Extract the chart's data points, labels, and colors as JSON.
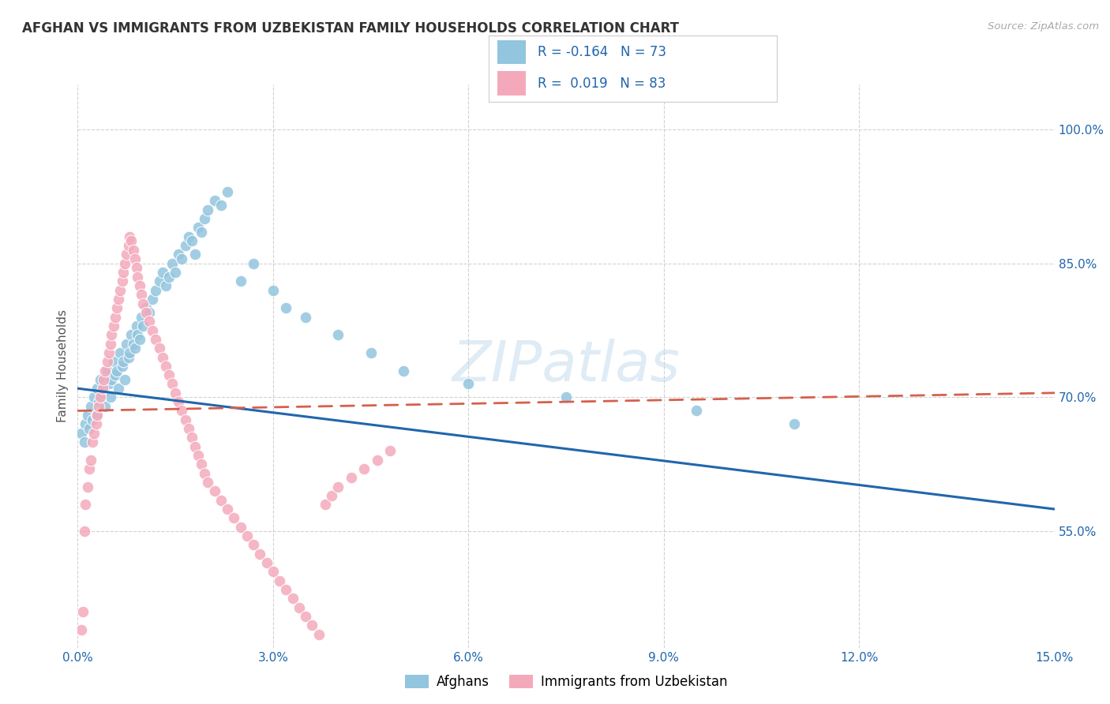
{
  "title": "AFGHAN VS IMMIGRANTS FROM UZBEKISTAN FAMILY HOUSEHOLDS CORRELATION CHART",
  "source": "Source: ZipAtlas.com",
  "ylabel": "Family Households",
  "yticks": [
    55.0,
    70.0,
    85.0,
    100.0
  ],
  "xmin": 0.0,
  "xmax": 15.0,
  "ymin": 42.0,
  "ymax": 105.0,
  "legend_blue_R": "-0.164",
  "legend_blue_N": "73",
  "legend_pink_R": "0.019",
  "legend_pink_N": "83",
  "blue_color": "#92c5de",
  "pink_color": "#f4a9bb",
  "blue_line_color": "#2166ac",
  "pink_line_color": "#d6604d",
  "watermark": "ZIPatlas",
  "afghans_x": [
    0.05,
    0.1,
    0.12,
    0.15,
    0.18,
    0.2,
    0.22,
    0.25,
    0.28,
    0.3,
    0.32,
    0.35,
    0.38,
    0.4,
    0.42,
    0.45,
    0.48,
    0.5,
    0.52,
    0.55,
    0.58,
    0.6,
    0.62,
    0.65,
    0.68,
    0.7,
    0.72,
    0.75,
    0.78,
    0.8,
    0.82,
    0.85,
    0.88,
    0.9,
    0.92,
    0.95,
    0.98,
    1.0,
    1.05,
    1.1,
    1.15,
    1.2,
    1.25,
    1.3,
    1.35,
    1.4,
    1.45,
    1.5,
    1.55,
    1.6,
    1.65,
    1.7,
    1.75,
    1.8,
    1.85,
    1.9,
    1.95,
    2.0,
    2.1,
    2.2,
    2.3,
    2.5,
    2.7,
    3.0,
    3.2,
    3.5,
    4.0,
    4.5,
    5.0,
    6.0,
    7.5,
    9.5,
    11.0
  ],
  "afghans_y": [
    66.0,
    65.0,
    67.0,
    68.0,
    66.5,
    69.0,
    67.5,
    70.0,
    68.0,
    71.0,
    69.5,
    72.0,
    70.5,
    71.0,
    69.0,
    73.0,
    71.5,
    70.0,
    72.0,
    74.0,
    72.5,
    73.0,
    71.0,
    75.0,
    73.5,
    74.0,
    72.0,
    76.0,
    74.5,
    75.0,
    77.0,
    76.0,
    75.5,
    78.0,
    77.0,
    76.5,
    79.0,
    78.0,
    80.0,
    79.5,
    81.0,
    82.0,
    83.0,
    84.0,
    82.5,
    83.5,
    85.0,
    84.0,
    86.0,
    85.5,
    87.0,
    88.0,
    87.5,
    86.0,
    89.0,
    88.5,
    90.0,
    91.0,
    92.0,
    91.5,
    93.0,
    83.0,
    85.0,
    82.0,
    80.0,
    79.0,
    77.0,
    75.0,
    73.0,
    71.5,
    70.0,
    68.5,
    67.0
  ],
  "uzbekistan_x": [
    0.05,
    0.08,
    0.1,
    0.12,
    0.15,
    0.18,
    0.2,
    0.22,
    0.25,
    0.28,
    0.3,
    0.32,
    0.35,
    0.38,
    0.4,
    0.42,
    0.45,
    0.48,
    0.5,
    0.52,
    0.55,
    0.58,
    0.6,
    0.62,
    0.65,
    0.68,
    0.7,
    0.72,
    0.75,
    0.78,
    0.8,
    0.82,
    0.85,
    0.88,
    0.9,
    0.92,
    0.95,
    0.98,
    1.0,
    1.05,
    1.1,
    1.15,
    1.2,
    1.25,
    1.3,
    1.35,
    1.4,
    1.45,
    1.5,
    1.55,
    1.6,
    1.65,
    1.7,
    1.75,
    1.8,
    1.85,
    1.9,
    1.95,
    2.0,
    2.1,
    2.2,
    2.3,
    2.4,
    2.5,
    2.6,
    2.7,
    2.8,
    2.9,
    3.0,
    3.1,
    3.2,
    3.3,
    3.4,
    3.5,
    3.6,
    3.7,
    3.8,
    3.9,
    4.0,
    4.2,
    4.4,
    4.6,
    4.8
  ],
  "uzbekistan_y": [
    44.0,
    46.0,
    55.0,
    58.0,
    60.0,
    62.0,
    63.0,
    65.0,
    66.0,
    67.0,
    68.0,
    69.0,
    70.0,
    71.0,
    72.0,
    73.0,
    74.0,
    75.0,
    76.0,
    77.0,
    78.0,
    79.0,
    80.0,
    81.0,
    82.0,
    83.0,
    84.0,
    85.0,
    86.0,
    87.0,
    88.0,
    87.5,
    86.5,
    85.5,
    84.5,
    83.5,
    82.5,
    81.5,
    80.5,
    79.5,
    78.5,
    77.5,
    76.5,
    75.5,
    74.5,
    73.5,
    72.5,
    71.5,
    70.5,
    69.5,
    68.5,
    67.5,
    66.5,
    65.5,
    64.5,
    63.5,
    62.5,
    61.5,
    60.5,
    59.5,
    58.5,
    57.5,
    56.5,
    55.5,
    54.5,
    53.5,
    52.5,
    51.5,
    50.5,
    49.5,
    48.5,
    47.5,
    46.5,
    45.5,
    44.5,
    43.5,
    58.0,
    59.0,
    60.0,
    61.0,
    62.0,
    63.0,
    64.0
  ],
  "blue_trendline_x": [
    0.0,
    15.0
  ],
  "blue_trendline_y": [
    71.0,
    57.5
  ],
  "pink_trendline_x": [
    0.0,
    15.0
  ],
  "pink_trendline_y": [
    68.5,
    70.5
  ],
  "xtick_positions": [
    0,
    3,
    6,
    9,
    12,
    15
  ],
  "xtick_labels": [
    "0.0%",
    "3.0%",
    "6.0%",
    "9.0%",
    "12.0%",
    "15.0%"
  ]
}
